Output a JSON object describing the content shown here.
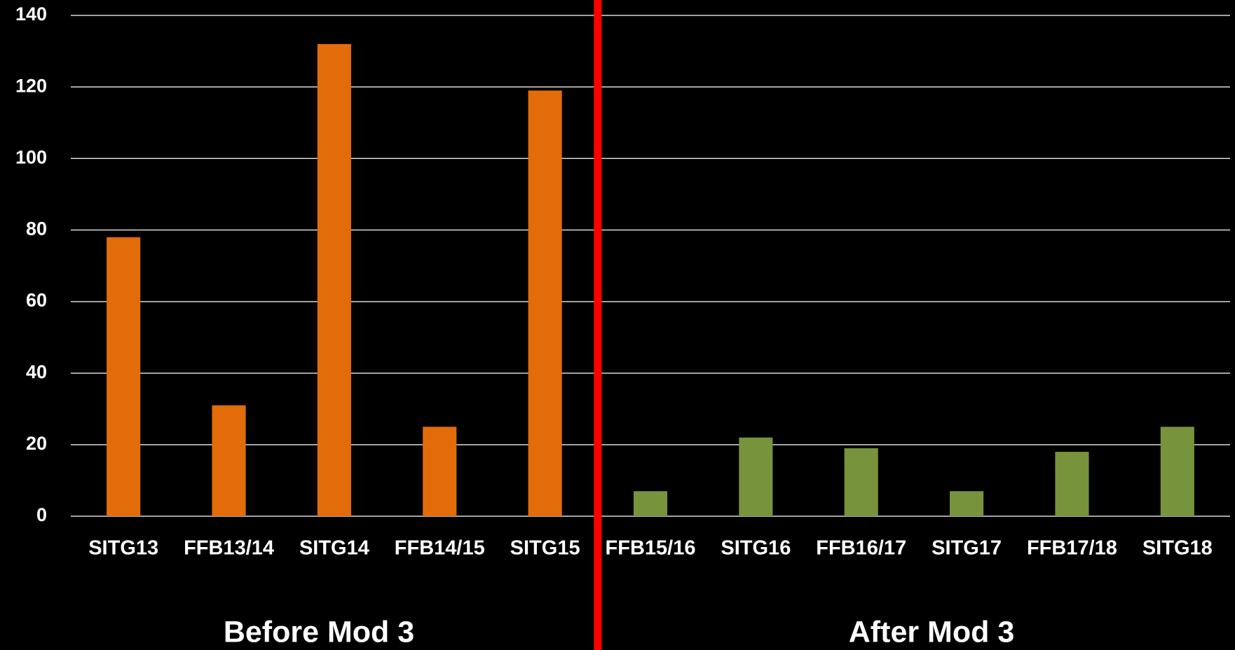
{
  "chart_data": {
    "type": "bar",
    "categories": [
      "SITG13",
      "FFB13/14",
      "SITG14",
      "FFB14/15",
      "SITG15",
      "FFB15/16",
      "SITG16",
      "FFB16/17",
      "SITG17",
      "FFB17/18",
      "SITG18"
    ],
    "values": [
      78,
      31,
      132,
      25,
      119,
      7,
      22,
      19,
      7,
      18,
      25
    ],
    "colors": [
      "#e36c0a",
      "#e36c0a",
      "#e36c0a",
      "#e36c0a",
      "#e36c0a",
      "#77933c",
      "#77933c",
      "#77933c",
      "#77933c",
      "#77933c",
      "#77933c"
    ],
    "ylim": [
      0,
      140
    ],
    "yticks": [
      0,
      20,
      40,
      60,
      80,
      100,
      120,
      140
    ],
    "grid": true,
    "annotations": [
      "Before Mod 3",
      "After Mod 3"
    ]
  }
}
